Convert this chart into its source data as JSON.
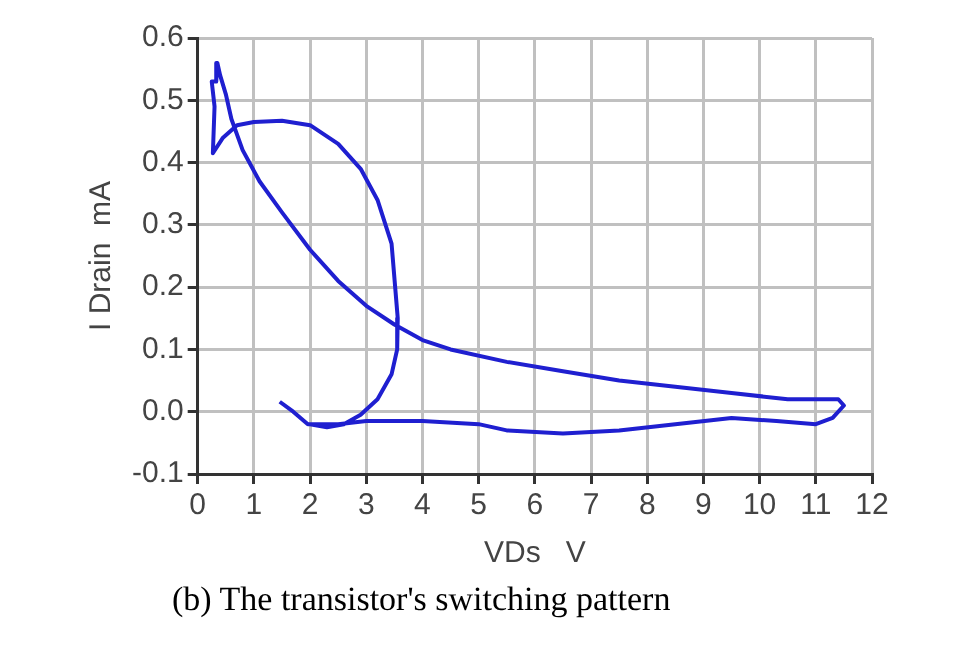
{
  "chart_data": {
    "type": "line",
    "title": "(b) The transistor's switching pattern",
    "xlabel": "VDs   V",
    "ylabel": "I Drain  mA",
    "series": [
      {
        "color": "#1f1fd0",
        "x": [
          1.46,
          1.7,
          1.96,
          2.5,
          3,
          4,
          5,
          5.5,
          6.5,
          7.5,
          8.5,
          9.5,
          10.3,
          11.0,
          11.3,
          11.5,
          11.4,
          10.5,
          9.5,
          8.5,
          7.5,
          6.5,
          5.5,
          4.5,
          4,
          3.5,
          3,
          2.5,
          2,
          1.5,
          1.1,
          0.8,
          0.6,
          0.5,
          0.4,
          0.35,
          0.33,
          0.25,
          0.3,
          0.27,
          0.45,
          0.7,
          1.0,
          1.5,
          2.0,
          2.5,
          2.9,
          3.2,
          3.45,
          3.56,
          3.55,
          3.45,
          3.2,
          2.9,
          2.6,
          2.3,
          2.0
        ],
        "values": [
          0.016,
          0.0,
          -0.02,
          -0.02,
          -0.015,
          -0.015,
          -0.02,
          -0.03,
          -0.035,
          -0.03,
          -0.02,
          -0.01,
          -0.015,
          -0.02,
          -0.01,
          0.01,
          0.02,
          0.02,
          0.03,
          0.04,
          0.05,
          0.065,
          0.08,
          0.1,
          0.115,
          0.14,
          0.17,
          0.21,
          0.26,
          0.32,
          0.37,
          0.42,
          0.47,
          0.51,
          0.54,
          0.56,
          0.53,
          0.53,
          0.49,
          0.415,
          0.44,
          0.46,
          0.465,
          0.467,
          0.46,
          0.43,
          0.39,
          0.34,
          0.27,
          0.15,
          0.1,
          0.06,
          0.02,
          -0.005,
          -0.02,
          -0.025,
          -0.02
        ]
      }
    ],
    "xlim": [
      0,
      12
    ],
    "xticks": [
      0,
      1,
      2,
      3,
      4,
      5,
      6,
      7,
      8,
      9,
      10,
      11,
      12
    ],
    "ylim": [
      -0.1,
      0.6
    ],
    "yticks": [
      {
        "value": -0.1,
        "label": "-0.1"
      },
      {
        "value": 0,
        "label": "0.0"
      },
      {
        "value": 0.1,
        "label": "0.1"
      },
      {
        "value": 0.2,
        "label": "0.2"
      },
      {
        "value": 0.3,
        "label": "0.3"
      },
      {
        "value": 0.4,
        "label": "0.4"
      },
      {
        "value": 0.5,
        "label": "0.5"
      },
      {
        "value": 0.6,
        "label": "0.6"
      }
    ],
    "grid": true,
    "marker": "none",
    "line_style": "solid"
  }
}
